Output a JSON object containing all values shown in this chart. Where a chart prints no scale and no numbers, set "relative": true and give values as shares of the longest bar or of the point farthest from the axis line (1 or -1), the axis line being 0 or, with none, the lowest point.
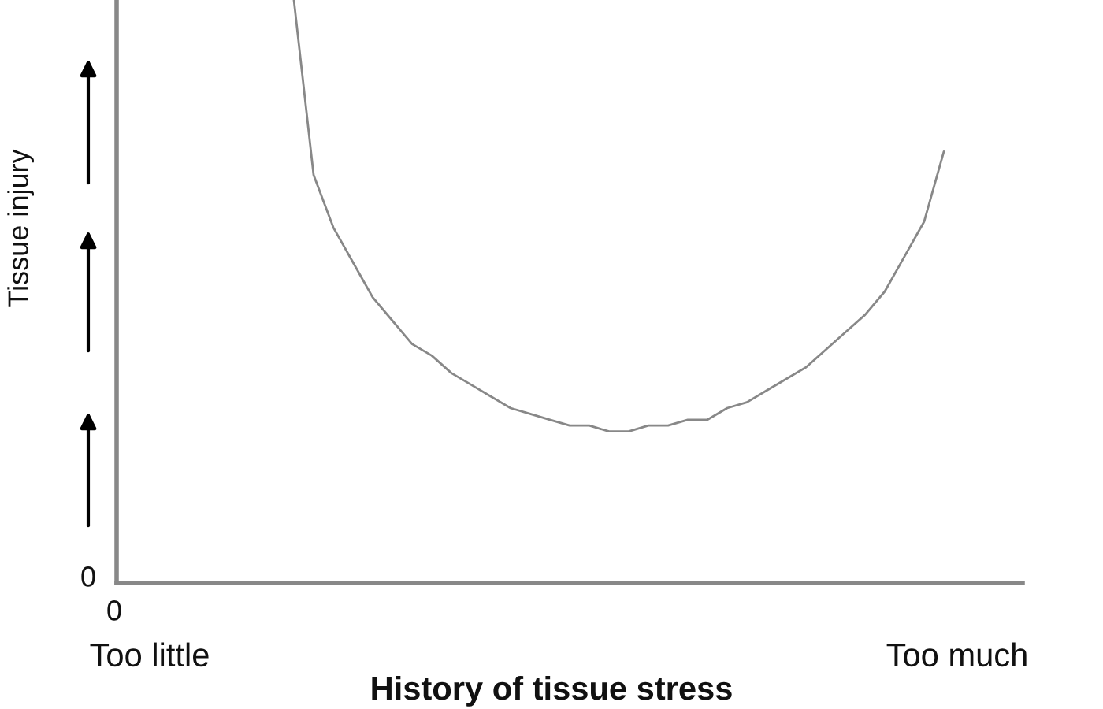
{
  "chart_data": {
    "type": "line",
    "relative": true,
    "xlabel": "History of tissue stress",
    "ylabel": "Tissue injury",
    "annotations": [
      "0",
      "0",
      "Too little",
      "Too much"
    ],
    "categories": [
      null,
      null,
      null,
      null,
      null,
      null,
      null,
      null,
      null,
      null,
      null,
      null,
      null,
      null,
      null,
      null,
      null,
      null,
      null,
      null,
      null,
      null,
      null,
      null,
      null,
      null,
      null,
      null,
      null,
      null,
      null,
      null,
      null,
      null,
      null,
      null,
      null,
      null,
      null,
      null,
      null,
      null,
      null,
      null,
      null,
      null,
      null
    ],
    "series": [
      {
        "color": "#888888",
        "values": [
          null,
          null,
          null,
          null,
          null,
          null,
          null,
          null,
          null,
          1.0,
          0.7,
          0.61,
          0.55,
          0.49,
          0.45,
          0.41,
          0.39,
          0.36,
          0.34,
          0.32,
          0.3,
          0.29,
          0.28,
          0.27,
          0.27,
          0.26,
          0.26,
          0.27,
          0.27,
          0.28,
          0.28,
          0.3,
          0.31,
          0.33,
          0.35,
          0.37,
          0.4,
          0.43,
          0.46,
          0.5,
          0.56,
          0.62,
          0.74,
          null,
          null,
          null,
          null
        ]
      }
    ]
  }
}
